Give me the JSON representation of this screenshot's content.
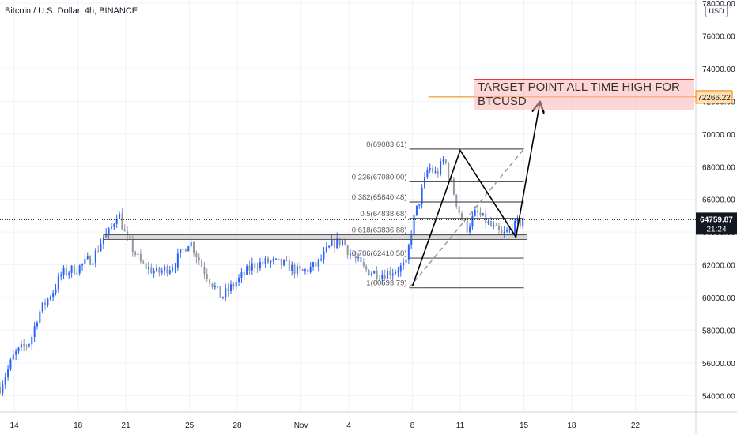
{
  "window": {
    "title": "Bitcoin / U.S. Dollar, 4h, BINANCE",
    "currency_badge": "USD"
  },
  "annotation": {
    "target_text": "TARGET POINT ALL TIME HIGH FOR BTCUSD",
    "target_price_label": "72266.22",
    "current_price_label": "64759.87",
    "countdown_label": "21:24"
  },
  "colors": {
    "up_candle": "#2962ff",
    "down_candle": "#9598a1",
    "target_box": "#e53935",
    "price_tag": "#131722",
    "target_tag": "#f57c00"
  },
  "chart_data": {
    "type": "candlestick",
    "title": "Bitcoin / U.S. Dollar, 4h, BINANCE",
    "ylim": [
      53000,
      78200
    ],
    "y_ticks": [
      54000,
      56000,
      58000,
      60000,
      62000,
      64000,
      66000,
      68000,
      70000,
      72000,
      74000,
      76000,
      78000
    ],
    "y_tick_labels": [
      "54000.00",
      "56000.00",
      "58000.00",
      "60000.00",
      "62000.00",
      "64000.00",
      "66000.00",
      "68000.00",
      "70000.00",
      "72000.00",
      "74000.00",
      "76000.00",
      "78000.00"
    ],
    "x_ticks": [
      {
        "label": "14",
        "t": 0
      },
      {
        "label": "18",
        "t": 4
      },
      {
        "label": "21",
        "t": 7
      },
      {
        "label": "25",
        "t": 11
      },
      {
        "label": "28",
        "t": 14
      },
      {
        "label": "Nov",
        "t": 18
      },
      {
        "label": "4",
        "t": 21
      },
      {
        "label": "8",
        "t": 25
      },
      {
        "label": "11",
        "t": 28
      },
      {
        "label": "15",
        "t": 32
      },
      {
        "label": "18",
        "t": 35
      },
      {
        "label": "22",
        "t": 39
      }
    ],
    "x_range_days": [
      -0.9,
      42.8
    ],
    "price_anchors": [
      [
        -0.9,
        54500
      ],
      [
        0,
        56500
      ],
      [
        1,
        57300
      ],
      [
        1.5,
        59000
      ],
      [
        2.5,
        60500
      ],
      [
        3,
        61500
      ],
      [
        4,
        61800
      ],
      [
        5,
        62500
      ],
      [
        5.6,
        63700
      ],
      [
        6,
        64000
      ],
      [
        6.5,
        65300
      ],
      [
        7,
        63700
      ],
      [
        8,
        62000
      ],
      [
        9,
        61500
      ],
      [
        10,
        62000
      ],
      [
        11,
        63500
      ],
      [
        12,
        61500
      ],
      [
        13,
        60000
      ],
      [
        14,
        61000
      ],
      [
        15,
        62000
      ],
      [
        16,
        62200
      ],
      [
        17,
        62000
      ],
      [
        18,
        61500
      ],
      [
        19,
        62000
      ],
      [
        20,
        63300
      ],
      [
        20.6,
        63500
      ],
      [
        21,
        62800
      ],
      [
        22,
        61700
      ],
      [
        23,
        61400
      ],
      [
        24,
        61700
      ],
      [
        24.6,
        62000
      ],
      [
        25,
        64500
      ],
      [
        25.6,
        66500
      ],
      [
        26,
        68000
      ],
      [
        26.5,
        67500
      ],
      [
        27,
        68500
      ],
      [
        28,
        65000
      ],
      [
        28.4,
        64200
      ],
      [
        29,
        65200
      ],
      [
        30,
        64300
      ],
      [
        30.6,
        63800
      ],
      [
        31,
        64000
      ],
      [
        31.6,
        64500
      ],
      [
        32,
        64760
      ]
    ],
    "current_price": 64759.87,
    "target_price": 72266.22,
    "support_zone": {
      "low": 63550,
      "high": 63836.88
    },
    "fibonacci": {
      "levels": [
        {
          "label": "0(69083.61)",
          "value": 69083.61
        },
        {
          "label": "0.236(67080.00)",
          "value": 67080.0
        },
        {
          "label": "0.382(65840.48)",
          "value": 65840.48
        },
        {
          "label": "0.5(64838.68)",
          "value": 64838.68
        },
        {
          "label": "0.618(63836.88)",
          "value": 63836.88
        },
        {
          "label": "0.786(62410.58)",
          "value": 62410.58
        },
        {
          "label": "1(60593.79)",
          "value": 60593.79
        }
      ],
      "x_start": 24.8,
      "x_end": 32.0
    },
    "projection_path": [
      {
        "t": 25.0,
        "price": 60700
      },
      {
        "t": 28.0,
        "price": 69000
      },
      {
        "t": 31.5,
        "price": 63700
      },
      {
        "t": 33.0,
        "price": 71900
      }
    ]
  }
}
